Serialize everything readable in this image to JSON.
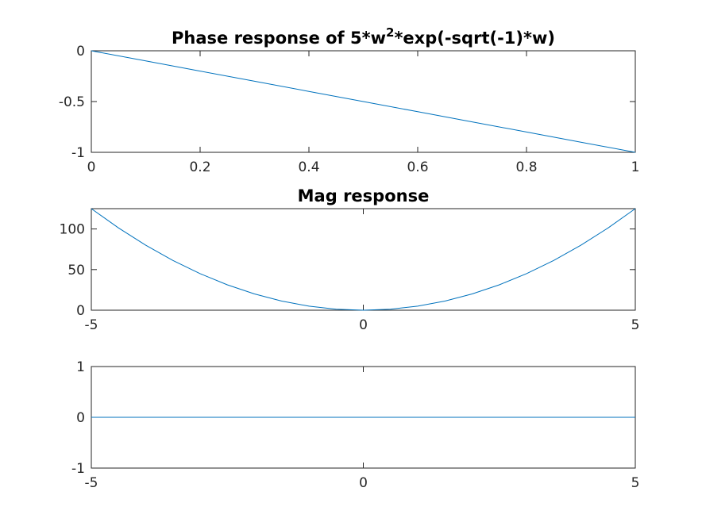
{
  "chart_data": [
    {
      "type": "line",
      "title": "Phase response of 5*w^2*exp(-sqrt(-1)*w)",
      "title_parts": {
        "prefix": "Phase response of 5*w",
        "superscript": "2",
        "suffix": "*exp(-sqrt(-1)*w)"
      },
      "xlim": [
        0,
        1
      ],
      "ylim": [
        -1,
        0
      ],
      "xticks": [
        0,
        0.2,
        0.4,
        0.6,
        0.8,
        1
      ],
      "xtick_labels": [
        "0",
        "0.2",
        "0.4",
        "0.6",
        "0.8",
        "1"
      ],
      "yticks": [
        0,
        -0.5,
        -1
      ],
      "ytick_labels": [
        "0",
        "-0.5",
        "-1"
      ],
      "series": [
        {
          "x": [
            0,
            0.1,
            0.2,
            0.3,
            0.4,
            0.5,
            0.6,
            0.7,
            0.8,
            0.9,
            1.0
          ],
          "y": [
            0,
            -0.1,
            -0.2,
            -0.3,
            -0.4,
            -0.5,
            -0.6,
            -0.7,
            -0.8,
            -0.9,
            -1.0
          ]
        }
      ],
      "color": "#0072bd"
    },
    {
      "type": "line",
      "title": "Mag response",
      "xlim": [
        -5,
        5
      ],
      "ylim": [
        0,
        125
      ],
      "xticks": [
        -5,
        0,
        5
      ],
      "xtick_labels": [
        "-5",
        "0",
        "5"
      ],
      "yticks": [
        0,
        50,
        100
      ],
      "ytick_labels": [
        "0",
        "50",
        "100"
      ],
      "series": [
        {
          "x": [
            -5,
            -4.5,
            -4,
            -3.5,
            -3,
            -2.5,
            -2,
            -1.5,
            -1,
            -0.5,
            0,
            0.5,
            1,
            1.5,
            2,
            2.5,
            3,
            3.5,
            4,
            4.5,
            5
          ],
          "y": [
            125,
            101.25,
            80,
            61.25,
            45,
            31.25,
            20,
            11.25,
            5,
            1.25,
            0,
            1.25,
            5,
            11.25,
            20,
            31.25,
            45,
            61.25,
            80,
            101.25,
            125
          ]
        }
      ],
      "color": "#0072bd"
    },
    {
      "type": "line",
      "title": "",
      "xlim": [
        -5,
        5
      ],
      "ylim": [
        -1,
        1
      ],
      "xticks": [
        -5,
        0,
        5
      ],
      "xtick_labels": [
        "-5",
        "0",
        "5"
      ],
      "yticks": [
        1,
        0,
        -1
      ],
      "ytick_labels": [
        "1",
        "0",
        "-1"
      ],
      "series": [
        {
          "x": [
            -5,
            5
          ],
          "y": [
            0,
            0
          ]
        }
      ],
      "color": "#0072bd"
    }
  ]
}
